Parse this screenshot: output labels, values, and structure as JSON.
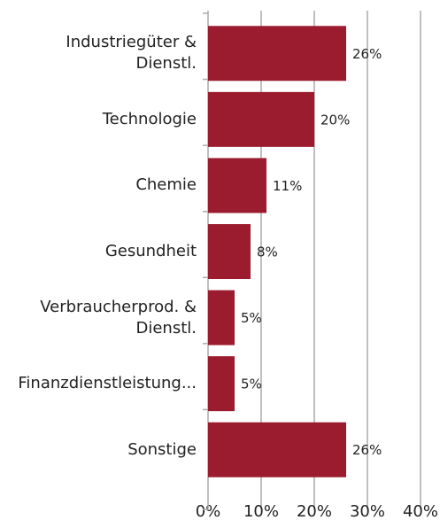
{
  "chart_data": {
    "type": "bar",
    "orientation": "horizontal",
    "categories": [
      "Industriegüter &\nDienstl.",
      "Technologie",
      "Chemie",
      "Gesundheit",
      "Verbraucherprod. &\nDienstl.",
      "Finanzdienstleistung...",
      "Sonstige"
    ],
    "values": [
      26,
      20,
      11,
      8,
      5,
      5,
      26
    ],
    "value_labels": [
      "26%",
      "20%",
      "11%",
      "8%",
      "5%",
      "5%",
      "26%"
    ],
    "color": "#9b1c2e",
    "xlim": [
      0,
      40
    ],
    "xticks": [
      {
        "value": 0,
        "label": "0%"
      },
      {
        "value": 10,
        "label": "10%"
      },
      {
        "value": 20,
        "label": "20%"
      },
      {
        "value": 30,
        "label": "30%"
      },
      {
        "value": 40,
        "label": "40%"
      }
    ],
    "grid": true
  }
}
